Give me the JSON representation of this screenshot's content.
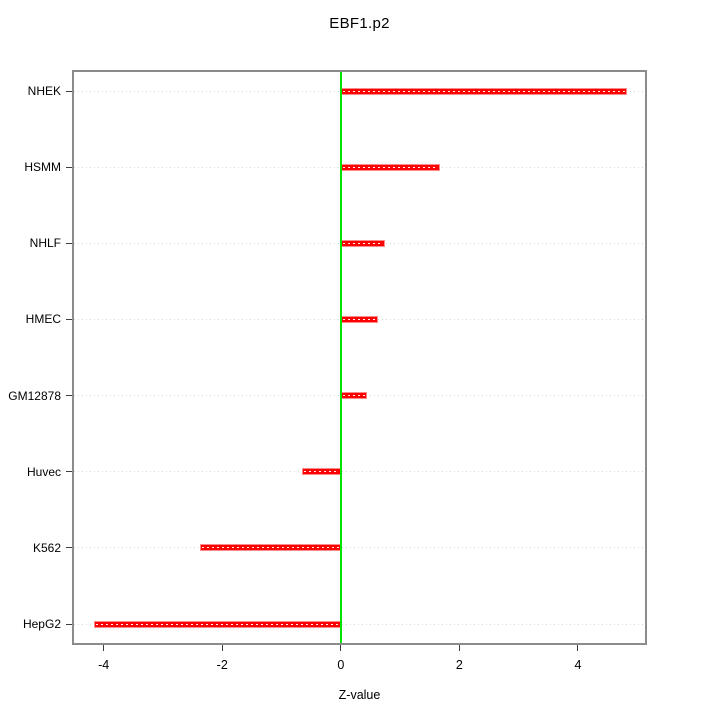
{
  "title": "EBF1.p2",
  "xlabel": "Z-value",
  "colors": {
    "bar": "#ff0000",
    "bar_border": "#ff8a8a",
    "bar_center_dots": "#ffffff",
    "zero_line": "#00e400",
    "grid": "#d8d8d8",
    "box_border": "#8b8b8b",
    "tick": "#3d3d3d",
    "text": "#000000",
    "background": "#ffffff"
  },
  "chart_data": {
    "type": "bar",
    "orientation": "horizontal",
    "title": "EBF1.p2",
    "xlabel": "Z-value",
    "ylabel": "",
    "categories": [
      "NHEK",
      "HSMM",
      "NHLF",
      "HMEC",
      "GM12878",
      "Huvec",
      "K562",
      "HepG2"
    ],
    "values": [
      4.82,
      1.68,
      0.74,
      0.62,
      0.44,
      -0.65,
      -2.37,
      -4.17
    ],
    "xlim": [
      -4.5,
      5.13
    ],
    "xticks": [
      -4,
      -2,
      0,
      2,
      4
    ],
    "xtick_labels": [
      "-4",
      "-2",
      "0",
      "2",
      "4"
    ],
    "zero_line": 0,
    "grid": "horizontal-dotted-per-category",
    "legend": null
  }
}
